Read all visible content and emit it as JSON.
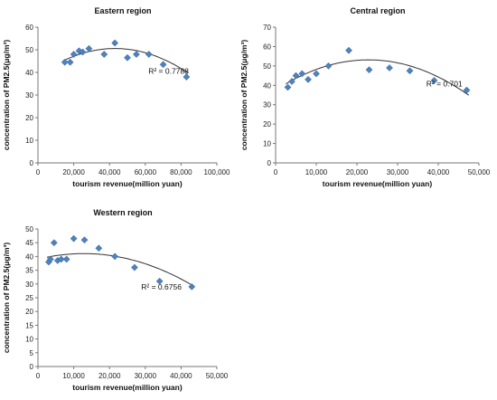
{
  "chart_data": [
    {
      "type": "scatter",
      "title": "Eastern region",
      "xlabel": "tourism revenue(million yuan)",
      "ylabel": "concentration of PM2.5(μg/m³)",
      "xlim": [
        0,
        100000
      ],
      "ylim": [
        0,
        60
      ],
      "xticks": [
        0,
        20000,
        40000,
        60000,
        80000,
        100000
      ],
      "yticks": [
        0,
        10,
        20,
        30,
        40,
        50,
        60
      ],
      "xtick_labels": [
        "0",
        "20,000",
        "40,000",
        "60,000",
        "80,000",
        "100,000"
      ],
      "ytick_labels": [
        "0",
        "10",
        "20",
        "30",
        "40",
        "50",
        "60"
      ],
      "points": [
        [
          15000,
          44.5
        ],
        [
          18000,
          44.5
        ],
        [
          20000,
          48
        ],
        [
          23000,
          49.5
        ],
        [
          25000,
          49
        ],
        [
          28500,
          50.5
        ],
        [
          37000,
          48
        ],
        [
          43000,
          53
        ],
        [
          50000,
          46.5
        ],
        [
          55000,
          48
        ],
        [
          62000,
          48
        ],
        [
          70000,
          43.5
        ],
        [
          83000,
          38
        ]
      ],
      "trendline": {
        "type": "polynomial",
        "coefficients": [
          38.5,
          0.00056,
          -6.5e-09
        ],
        "x_range": [
          14000,
          84000
        ]
      },
      "r_squared_label": "R² = 0.7788",
      "r_squared_at": [
        73000,
        39.5
      ],
      "marker_color": "#4f81bd",
      "grid": false
    },
    {
      "type": "scatter",
      "title": "Central region",
      "xlabel": "tourism revenue(million yuan)",
      "ylabel": "concentration of PM2.5(μg/m³)",
      "xlim": [
        0,
        50000
      ],
      "ylim": [
        0,
        70
      ],
      "xticks": [
        0,
        10000,
        20000,
        30000,
        40000,
        50000
      ],
      "yticks": [
        0,
        10,
        20,
        30,
        40,
        50,
        60,
        70
      ],
      "xtick_labels": [
        "0",
        "10,000",
        "20,000",
        "30,000",
        "40,000",
        "50,000"
      ],
      "ytick_labels": [
        "0",
        "10",
        "20",
        "30",
        "40",
        "50",
        "60",
        "70"
      ],
      "points": [
        [
          3000,
          39
        ],
        [
          4000,
          42
        ],
        [
          5000,
          45
        ],
        [
          6500,
          46
        ],
        [
          8000,
          43
        ],
        [
          10000,
          46
        ],
        [
          13000,
          50
        ],
        [
          18000,
          58
        ],
        [
          23000,
          48
        ],
        [
          28000,
          49
        ],
        [
          33000,
          47.5
        ],
        [
          39000,
          42.5
        ],
        [
          47000,
          37.5
        ]
      ],
      "trendline": {
        "type": "polynomial",
        "coefficients": [
          37.5,
          0.00137,
          -3e-08
        ],
        "x_range": [
          2500,
          47500
        ]
      },
      "r_squared_label": "R² = 0.701",
      "r_squared_at": [
        41500,
        39.5
      ],
      "marker_color": "#4f81bd",
      "grid": false
    },
    {
      "type": "scatter",
      "title": "Western region",
      "xlabel": "tourism revenue(million yuan)",
      "ylabel": "concentration of PM2.5(μg/m³)",
      "xlim": [
        0,
        50000
      ],
      "ylim": [
        0,
        50
      ],
      "xticks": [
        0,
        10000,
        20000,
        30000,
        40000,
        50000
      ],
      "yticks": [
        0,
        5,
        10,
        15,
        20,
        25,
        30,
        35,
        40,
        45,
        50
      ],
      "xtick_labels": [
        "0",
        "10,000",
        "20,000",
        "30,000",
        "40,000",
        "50,000"
      ],
      "ytick_labels": [
        "0",
        "5",
        "10",
        "15",
        "20",
        "25",
        "30",
        "35",
        "40",
        "45",
        "50"
      ],
      "points": [
        [
          3000,
          38
        ],
        [
          3500,
          39
        ],
        [
          4500,
          45
        ],
        [
          5500,
          38.5
        ],
        [
          6500,
          39
        ],
        [
          8000,
          39
        ],
        [
          10000,
          46.5
        ],
        [
          13000,
          46
        ],
        [
          17000,
          43
        ],
        [
          21500,
          40
        ],
        [
          27000,
          36
        ],
        [
          34000,
          31
        ],
        [
          43000,
          29
        ]
      ],
      "trendline": {
        "type": "polynomial",
        "coefficients": [
          39.0,
          0.00032,
          -1.25e-08
        ],
        "x_range": [
          2500,
          43500
        ]
      },
      "r_squared_label": "R² = 0.6756",
      "r_squared_at": [
        34500,
        28
      ],
      "marker_color": "#4f81bd",
      "grid": false
    }
  ]
}
